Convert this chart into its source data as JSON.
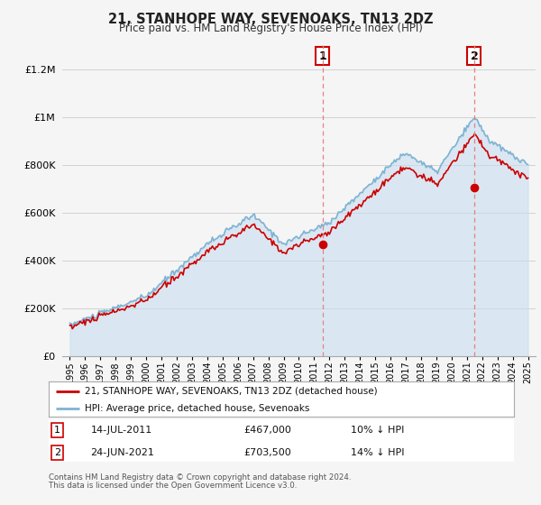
{
  "title": "21, STANHOPE WAY, SEVENOAKS, TN13 2DZ",
  "subtitle": "Price paid vs. HM Land Registry's House Price Index (HPI)",
  "legend_line1": "21, STANHOPE WAY, SEVENOAKS, TN13 2DZ (detached house)",
  "legend_line2": "HPI: Average price, detached house, Sevenoaks",
  "transaction1_date": "14-JUL-2011",
  "transaction1_price": "£467,000",
  "transaction1_hpi": "10% ↓ HPI",
  "transaction2_date": "24-JUN-2021",
  "transaction2_price": "£703,500",
  "transaction2_hpi": "14% ↓ HPI",
  "footnote1": "Contains HM Land Registry data © Crown copyright and database right 2024.",
  "footnote2": "This data is licensed under the Open Government Licence v3.0.",
  "hpi_color": "#7fb3d3",
  "hpi_fill_color": "#c8dff0",
  "price_color": "#cc0000",
  "vline_color": "#e88080",
  "background_color": "#f5f5f5",
  "grid_color": "#cccccc",
  "ylim": [
    0,
    1300000
  ],
  "yticks": [
    0,
    200000,
    400000,
    600000,
    800000,
    1000000,
    1200000
  ],
  "ytick_labels": [
    "£0",
    "£200K",
    "£400K",
    "£600K",
    "£800K",
    "£1M",
    "£1.2M"
  ],
  "transaction1_x": 2011.54,
  "transaction1_y": 467000,
  "transaction2_x": 2021.48,
  "transaction2_y": 703500,
  "xmin": 1995,
  "xmax": 2025
}
